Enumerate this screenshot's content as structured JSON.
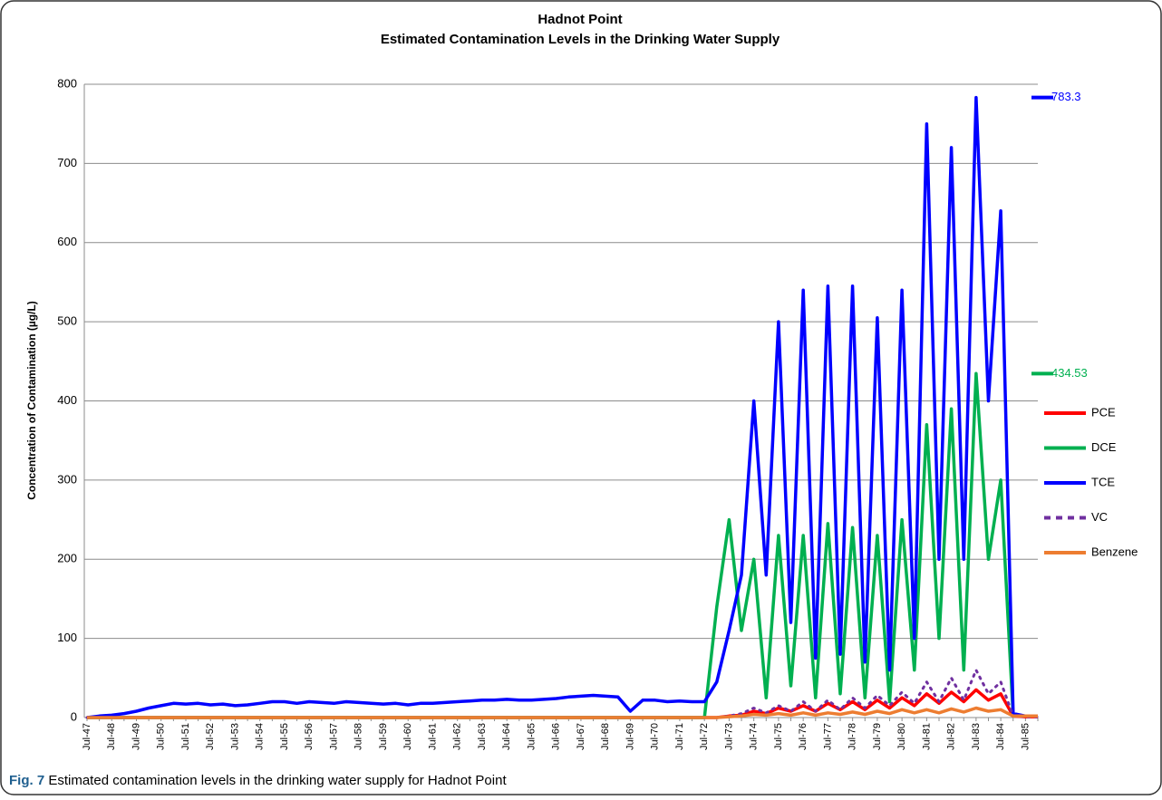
{
  "chart_data": {
    "type": "line",
    "title": "Hadnot Point",
    "subtitle": "Estimated Contamination Levels in the Drinking Water Supply",
    "y_label": "Concentration of Contamination (µg/L)",
    "caption": {
      "label": "Fig. 7",
      "text": "Estimated contamination levels in the drinking water supply for Hadnot Point"
    },
    "categories": [
      "Jul-47",
      null,
      "Jul-48",
      null,
      "Jul-49",
      null,
      "Jul-50",
      null,
      "Jul-51",
      null,
      "Jul-52",
      null,
      "Jul-53",
      null,
      "Jul-54",
      null,
      "Jul-55",
      null,
      "Jul-56",
      null,
      "Jul-57",
      null,
      "Jul-58",
      null,
      "Jul-59",
      null,
      "Jul-60",
      null,
      "Jul-61",
      null,
      "Jul-62",
      null,
      "Jul-63",
      null,
      "Jul-64",
      null,
      "Jul-65",
      null,
      "Jul-66",
      null,
      "Jul-67",
      null,
      "Jul-68",
      null,
      "Jul-69",
      null,
      "Jul-70",
      null,
      "Jul-71",
      null,
      "Jul-72",
      null,
      "Jul-73",
      null,
      "Jul-74",
      null,
      "Jul-75",
      null,
      "Jul-76",
      null,
      "Jul-77",
      null,
      "Jul-78",
      null,
      "Jul-79",
      null,
      "Jul-80",
      null,
      "Jul-81",
      null,
      "Jul-82",
      null,
      "Jul-83",
      null,
      "Jul-84",
      null,
      "Jul-85",
      null
    ],
    "ylim": [
      0,
      800
    ],
    "yticks": [
      0,
      100,
      200,
      300,
      400,
      500,
      600,
      700,
      800
    ],
    "grid": true,
    "legend": "right",
    "series": [
      {
        "name": "PCE",
        "color": "#ff0000",
        "values": [
          0,
          0,
          0,
          0,
          0,
          0,
          0,
          0,
          0,
          0,
          0,
          0,
          0,
          0,
          0,
          0,
          0,
          0,
          0,
          0,
          0,
          0,
          0,
          0,
          0,
          0,
          0,
          0,
          0,
          0,
          0,
          0,
          0,
          0,
          0,
          0,
          0,
          0,
          0,
          0,
          0,
          0,
          0,
          0,
          0,
          0,
          0,
          0,
          0,
          0,
          0,
          0,
          2,
          3,
          8,
          5,
          12,
          8,
          15,
          8,
          18,
          10,
          20,
          10,
          22,
          12,
          25,
          15,
          30,
          18,
          32,
          20,
          35,
          22,
          30,
          2,
          1,
          1
        ]
      },
      {
        "name": "DCE",
        "color": "#00b050",
        "values": [
          0,
          0,
          0,
          0,
          0,
          0,
          0,
          0,
          0,
          0,
          0,
          0,
          0,
          0,
          0,
          0,
          0,
          0,
          0,
          0,
          0,
          0,
          0,
          0,
          0,
          0,
          0,
          0,
          0,
          0,
          0,
          0,
          0,
          0,
          0,
          0,
          0,
          0,
          0,
          0,
          0,
          0,
          0,
          0,
          0,
          0,
          0,
          0,
          0,
          0,
          0,
          140,
          250,
          110,
          200,
          25,
          230,
          40,
          230,
          25,
          245,
          30,
          240,
          25,
          230,
          20,
          250,
          60,
          370,
          100,
          390,
          60,
          434.53,
          200,
          300,
          2,
          2,
          2
        ]
      },
      {
        "name": "TCE",
        "color": "#0000ff",
        "values": [
          0,
          2,
          3,
          5,
          8,
          12,
          15,
          18,
          17,
          18,
          16,
          17,
          15,
          16,
          18,
          20,
          20,
          18,
          20,
          19,
          18,
          20,
          19,
          18,
          17,
          18,
          16,
          18,
          18,
          19,
          20,
          21,
          22,
          22,
          23,
          22,
          22,
          23,
          24,
          26,
          27,
          28,
          27,
          26,
          8,
          22,
          22,
          20,
          21,
          20,
          20,
          45,
          110,
          180,
          400,
          180,
          500,
          120,
          540,
          75,
          545,
          80,
          545,
          70,
          505,
          60,
          540,
          100,
          750,
          200,
          720,
          200,
          783.3,
          400,
          640,
          5,
          2,
          2
        ]
      },
      {
        "name": "VC",
        "color": "#7030a0",
        "line_style": "dashed",
        "values": [
          0,
          0,
          0,
          0,
          0,
          0,
          0,
          0,
          0,
          0,
          0,
          0,
          0,
          0,
          0,
          0,
          0,
          0,
          0,
          0,
          0,
          0,
          0,
          0,
          0,
          0,
          0,
          0,
          0,
          0,
          0,
          0,
          0,
          0,
          0,
          0,
          0,
          0,
          0,
          0,
          0,
          0,
          0,
          0,
          0,
          0,
          0,
          0,
          0,
          0,
          0,
          0,
          2,
          5,
          12,
          6,
          15,
          8,
          20,
          8,
          22,
          10,
          25,
          12,
          28,
          15,
          32,
          18,
          45,
          20,
          50,
          22,
          60,
          30,
          45,
          2,
          1,
          1
        ]
      },
      {
        "name": "Benzene",
        "color": "#ed7d31",
        "values": [
          0,
          0,
          0,
          0,
          0,
          0,
          0,
          0,
          0,
          0,
          0,
          0,
          0,
          0,
          0,
          0,
          0,
          0,
          0,
          0,
          0,
          0,
          0,
          0,
          0,
          0,
          0,
          0,
          0,
          0,
          0,
          0,
          0,
          0,
          0,
          0,
          0,
          0,
          0,
          0,
          0,
          0,
          0,
          0,
          0,
          0,
          0,
          0,
          0,
          0,
          0,
          0,
          1,
          2,
          4,
          3,
          5,
          3,
          6,
          3,
          6,
          4,
          7,
          4,
          8,
          5,
          10,
          6,
          10,
          6,
          11,
          7,
          12,
          8,
          10,
          2,
          2,
          2
        ]
      }
    ],
    "annotations": [
      {
        "text": "783.3",
        "value": 783.3,
        "color": "#0000ff"
      },
      {
        "text": "434.53",
        "value": 434.53,
        "color": "#00b050"
      }
    ]
  }
}
